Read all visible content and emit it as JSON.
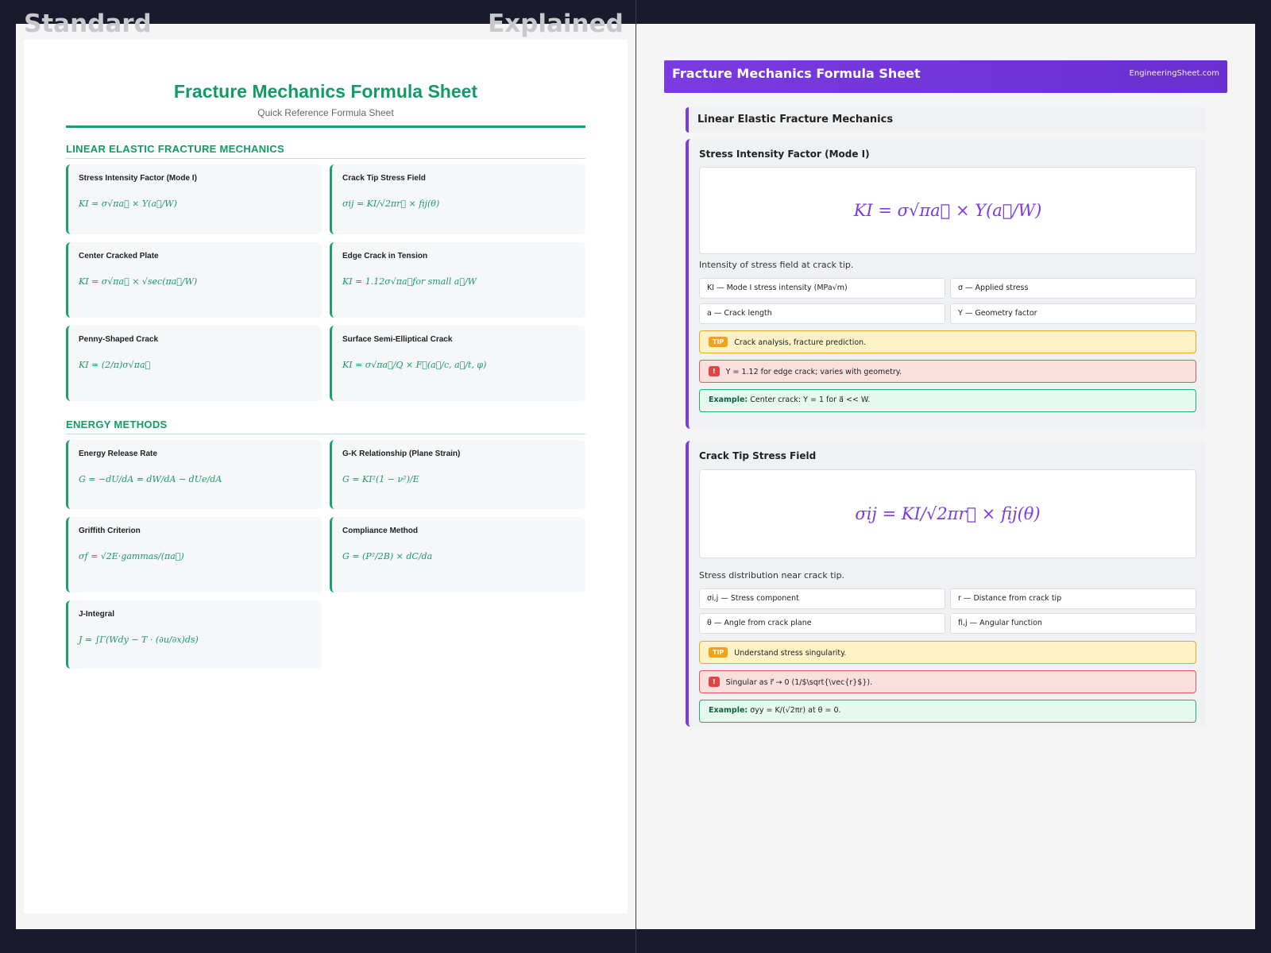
{
  "labels": {
    "left": "Standard",
    "right": "Explained"
  },
  "standard": {
    "title": "Fracture Mechanics Formula Sheet",
    "subtitle": "Quick Reference Formula Sheet",
    "sections": [
      {
        "title": "LINEAR ELASTIC FRACTURE MECHANICS",
        "cards": [
          {
            "title": "Stress Intensity Factor (Mode I)",
            "formula": "KI = σ√πa⃗ × Y(a⃗/W)"
          },
          {
            "title": "Crack Tip Stress Field",
            "formula": "σij = KI/√2πr⃗ × fij(θ)"
          },
          {
            "title": "Center Cracked Plate",
            "formula": "KI = σ√πa⃗ × √sec(πa⃗/W)"
          },
          {
            "title": "Edge Crack in Tension",
            "formula": "KI = 1.12σ√πa⃗for small a⃗/W"
          },
          {
            "title": "Penny-Shaped Crack",
            "formula": "KI = (2/π)σ√πa⃗"
          },
          {
            "title": "Surface Semi-Elliptical Crack",
            "formula": "KI = σ√πa⃗/Q × F⃗(a⃗/c, a⃗/t, φ)"
          }
        ]
      },
      {
        "title": "ENERGY METHODS",
        "cards": [
          {
            "title": "Energy Release Rate",
            "formula": "G = −dU/dA = dW/dA − dUe/dA"
          },
          {
            "title": "G-K Relationship (Plane Strain)",
            "formula": "G = KI²(1 − ν²)/E"
          },
          {
            "title": "Griffith Criterion",
            "formula": "σf = √2E·gammas/(πa⃗)"
          },
          {
            "title": "Compliance Method",
            "formula": "G = (P²/2B) × dC/da"
          },
          {
            "title": "J-Integral",
            "formula": "J = ∫Γ(Wdy − T · (∂u/∂x)ds)"
          }
        ]
      }
    ]
  },
  "explained": {
    "banner_title": "Fracture Mechanics Formula Sheet",
    "site": "EngineeringSheet.com",
    "section_title": "Linear Elastic Fracture Mechanics",
    "cards": [
      {
        "title": "Stress Intensity Factor (Mode I)",
        "formula": "KI = σ√πa⃗ × Y(a⃗/W)",
        "description": "Intensity of stress field at crack tip.",
        "variables": [
          "KI — Mode I stress intensity (MPa√m)",
          "σ — Applied stress",
          "a — Crack length",
          "Y — Geometry factor"
        ],
        "tip_tag": "TIP",
        "tip": "Crack analysis, fracture prediction.",
        "warn_tag": "!",
        "warning": "Y = 1.12 for edge crack; varies with geometry.",
        "example_label": "Example:",
        "example": "Center crack: Y = 1 for a⃗ << W."
      },
      {
        "title": "Crack Tip Stress Field",
        "formula": "σij = KI/√2πr⃗ × fij(θ)",
        "description": "Stress distribution near crack tip.",
        "variables": [
          "σi,j — Stress component",
          "r — Distance from crack tip",
          "θ — Angle from crack plane",
          "fi,j — Angular function"
        ],
        "tip_tag": "TIP",
        "tip": "Understand stress singularity.",
        "warn_tag": "!",
        "warning": "Singular as r⃗ → 0 (1/$\\sqrt{\\vec{r}$}).",
        "example_label": "Example:",
        "example": "σyy = K/(√2πr) at θ = 0."
      }
    ]
  }
}
